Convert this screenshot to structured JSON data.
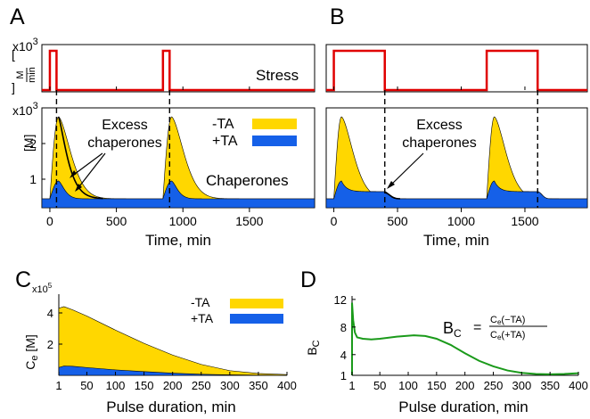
{
  "panels": {
    "A": "A",
    "B": "B",
    "C": "C",
    "D": "D"
  },
  "colors": {
    "minus_ta": "#ffd700",
    "plus_ta": "#1560e8",
    "stress": "#e00000",
    "bc_line": "#1a9a1a",
    "outline": "#000000"
  },
  "top": {
    "stress_label": "Stress",
    "chaperones_label": "Chaperones",
    "stress_scale": "x10",
    "stress_scale_exp": "3",
    "chap_scale": "x10",
    "chap_scale_exp": "3",
    "stress_unit_num": "M",
    "stress_unit_den": "min",
    "chap_unit": "[M]",
    "xlabel": "Time, min",
    "legend_minus": "-TA",
    "legend_plus": "+TA",
    "annotation_A_line1": "Excess",
    "annotation_A_line2": "chaperones",
    "annotation_B_line1": "Excess",
    "annotation_B_line2": "chaperones"
  },
  "bottom": {
    "xlabel_C": "Pulse duration, min",
    "xlabel_D": "Pulse duration, min",
    "C_ylabel_main": "C",
    "C_ylabel_sub": "e",
    "C_ylabel_unit": " [M]",
    "C_scale": "x10",
    "C_scale_exp": "5",
    "D_ylabel_main": "B",
    "D_ylabel_sub": "C",
    "legend_minus": "-TA",
    "legend_plus": "+TA",
    "formula_lhs_main": "B",
    "formula_lhs_sub": "C",
    "formula_eq": "=",
    "formula_num_main": "C",
    "formula_num_sub": "e",
    "formula_num_arg": "(−TA)",
    "formula_den_main": "C",
    "formula_den_sub": "e",
    "formula_den_arg": "(+TA)"
  },
  "chart_data": [
    {
      "panel": "A",
      "type": "area",
      "xlabel": "Time, min",
      "xlim": [
        -60,
        1990
      ],
      "xticks": [
        0,
        500,
        1000,
        1500
      ],
      "stress": {
        "pulse_starts": [
          0,
          850
        ],
        "pulse_duration": 50,
        "level": 1
      },
      "chaperones": {
        "ylim": [
          0.2,
          3.0
        ],
        "yticks": [
          1,
          2
        ],
        "pulse_starts": [
          0,
          850
        ],
        "pulse_duration": 50,
        "baseline": 0.45,
        "minus_ta_peak": 2.75,
        "plus_ta_peak": 0.95,
        "peak_time_after_start": 65
      }
    },
    {
      "panel": "B",
      "type": "area",
      "xlabel": "Time, min",
      "xlim": [
        -60,
        1990
      ],
      "xticks": [
        0,
        500,
        1000,
        1500
      ],
      "stress": {
        "pulse_starts": [
          0,
          1200
        ],
        "pulse_duration": 400,
        "level": 1
      },
      "chaperones": {
        "ylim": [
          0.2,
          3.0
        ],
        "yticks": [
          1,
          2
        ],
        "pulse_starts": [
          0,
          1200
        ],
        "pulse_duration": 400,
        "baseline": 0.45,
        "minus_ta_peak": 2.75,
        "plus_ta_peak": 0.95,
        "plus_ta_plateau": 0.65
      }
    },
    {
      "panel": "C",
      "type": "area",
      "xlabel": "Pulse duration, min",
      "ylabel": "C_e [M]",
      "y_scale": "x10^5",
      "xticks": [
        1,
        50,
        100,
        150,
        200,
        250,
        300,
        350,
        400
      ],
      "yticks": [
        2,
        4
      ],
      "ylim": [
        0,
        5.2
      ],
      "series": [
        {
          "name": "-TA",
          "x": [
            1,
            10,
            25,
            50,
            100,
            150,
            200,
            250,
            300,
            350,
            400
          ],
          "values": [
            4.3,
            4.4,
            4.2,
            3.8,
            2.9,
            2.05,
            1.3,
            0.7,
            0.3,
            0.12,
            0.05
          ]
        },
        {
          "name": "+TA",
          "x": [
            1,
            10,
            25,
            50,
            100,
            150,
            200,
            250,
            300,
            350,
            400
          ],
          "values": [
            0.5,
            0.6,
            0.58,
            0.5,
            0.35,
            0.24,
            0.14,
            0.07,
            0.03,
            0.01,
            0.0
          ]
        }
      ]
    },
    {
      "panel": "D",
      "type": "line",
      "xlabel": "Pulse duration, min",
      "ylabel": "B_C",
      "xticks": [
        1,
        50,
        100,
        150,
        200,
        250,
        300,
        350,
        400
      ],
      "yticks": [
        1,
        4,
        8,
        12
      ],
      "ylim": [
        1,
        12.5
      ],
      "series": [
        {
          "name": "B_C",
          "x": [
            1,
            3,
            6,
            10,
            20,
            35,
            50,
            80,
            110,
            130,
            150,
            175,
            200,
            225,
            250,
            275,
            300,
            325,
            350,
            375,
            400
          ],
          "values": [
            11.5,
            9.0,
            7.2,
            6.5,
            6.3,
            6.2,
            6.3,
            6.6,
            6.8,
            6.7,
            6.3,
            5.4,
            4.2,
            3.1,
            2.3,
            1.7,
            1.35,
            1.2,
            1.15,
            1.2,
            1.3
          ]
        }
      ]
    }
  ]
}
